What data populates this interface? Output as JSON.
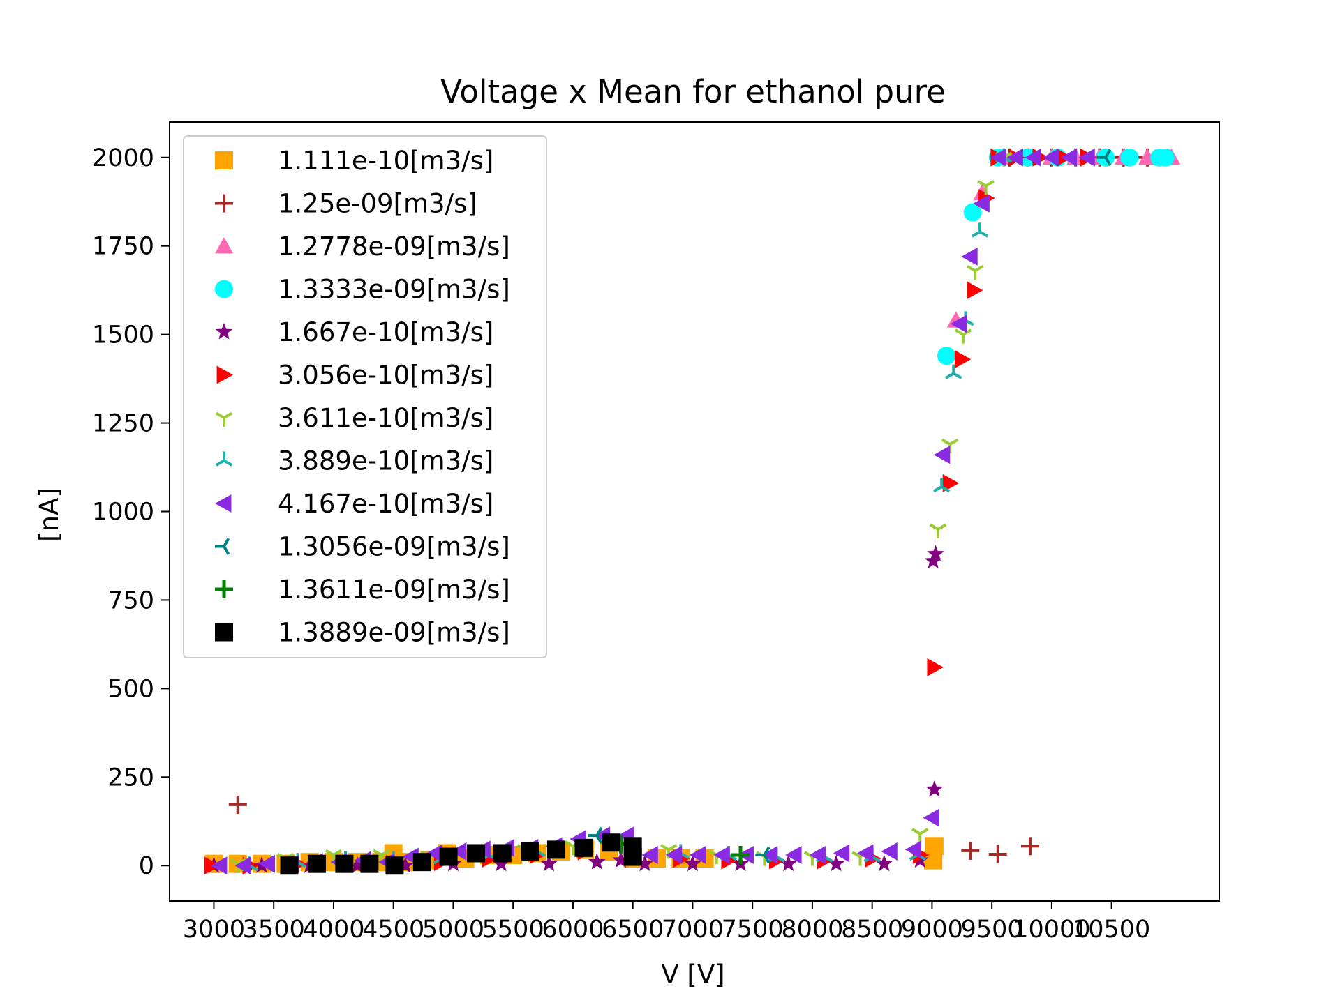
{
  "chart_data": {
    "type": "scatter",
    "title": "Voltage x Mean for ethanol pure",
    "xlabel": "V [V]",
    "ylabel": "[nA]",
    "xlim": [
      2630,
      11400
    ],
    "ylim": [
      -100,
      2100
    ],
    "xticks": [
      3000,
      3500,
      4000,
      4500,
      5000,
      5500,
      6000,
      6500,
      7000,
      7500,
      8000,
      8500,
      9000,
      9500,
      10000,
      10500
    ],
    "yticks": [
      0,
      250,
      500,
      750,
      1000,
      1250,
      1500,
      1750,
      2000
    ],
    "xtick_labels": [
      "3000",
      "3500",
      "4000",
      "4500",
      "5000",
      "5500",
      "6000",
      "6500",
      "7000",
      "7500",
      "8000",
      "8500",
      "9000",
      "9500",
      "10000",
      "10500"
    ],
    "ytick_labels": [
      "0",
      "250",
      "500",
      "750",
      "1000",
      "1250",
      "1500",
      "1750",
      "2000"
    ],
    "grid": false,
    "legend_position": "upper-left",
    "series": [
      {
        "name": "1.111e-10[m3/s]",
        "color": "#FFA500",
        "marker": "square",
        "x": [
          3000,
          3200,
          3400,
          3600,
          3800,
          4000,
          4200,
          4400,
          4500,
          4600,
          4800,
          4950,
          5100,
          5300,
          5500,
          5700,
          5900,
          6100,
          6300,
          6500,
          6700,
          6900,
          7100,
          9010,
          9020
        ],
        "y": [
          5,
          5,
          5,
          5,
          10,
          10,
          10,
          10,
          35,
          10,
          15,
          35,
          20,
          30,
          30,
          35,
          40,
          45,
          40,
          20,
          20,
          20,
          20,
          15,
          55
        ]
      },
      {
        "name": "1.25e-09[m3/s]",
        "color": "#A52A2A",
        "marker": "plus-thin",
        "x": [
          3200,
          9320,
          9550,
          9820,
          9650,
          9800,
          10000,
          10200,
          10400,
          10600,
          10800
        ],
        "y": [
          172,
          42,
          32,
          55,
          2000,
          2000,
          2000,
          2000,
          2000,
          2000,
          2000
        ]
      },
      {
        "name": "1.2778e-09[m3/s]",
        "color": "#FF69B4",
        "marker": "triangle-up",
        "x": [
          9200,
          9420,
          9600,
          9800,
          10000,
          10200,
          10400,
          10600,
          10800,
          11000
        ],
        "y": [
          1540,
          1900,
          2000,
          2000,
          2000,
          2000,
          2000,
          2000,
          2000,
          2000
        ]
      },
      {
        "name": "1.3333e-09[m3/s]",
        "color": "#00FFFF",
        "marker": "circle",
        "x": [
          9120,
          9340,
          9550,
          9800,
          10050,
          10450,
          10650,
          10900,
          10950
        ],
        "y": [
          1440,
          1845,
          2000,
          2000,
          2000,
          2000,
          2000,
          2000,
          2000
        ]
      },
      {
        "name": "1.667e-10[m3/s]",
        "color": "#800080",
        "marker": "star",
        "x": [
          3000,
          3400,
          3800,
          4200,
          4600,
          5000,
          5400,
          5800,
          6200,
          6400,
          6600,
          7000,
          7400,
          7800,
          8200,
          8600,
          8900,
          9020,
          9010,
          9030
        ],
        "y": [
          0,
          0,
          0,
          0,
          0,
          5,
          5,
          5,
          10,
          15,
          5,
          5,
          5,
          5,
          5,
          5,
          15,
          215,
          860,
          880
        ]
      },
      {
        "name": "3.056e-10[m3/s]",
        "color": "#FF0000",
        "marker": "triangle-right",
        "x": [
          2980,
          3300,
          3700,
          4100,
          4500,
          4900,
          5300,
          5700,
          6100,
          6500,
          6900,
          7300,
          7700,
          8100,
          8500,
          8900,
          9020,
          9150,
          9250,
          9350,
          9450,
          9550,
          9700,
          9900,
          10100,
          10300
        ],
        "y": [
          0,
          0,
          5,
          5,
          5,
          10,
          20,
          30,
          40,
          30,
          20,
          15,
          15,
          15,
          20,
          30,
          560,
          1080,
          1430,
          1625,
          1885,
          2000,
          2000,
          2000,
          2000,
          2000
        ]
      },
      {
        "name": "3.611e-10[m3/s]",
        "color": "#9ACD32",
        "marker": "tri-down",
        "x": [
          3200,
          3600,
          4000,
          4400,
          4800,
          5200,
          5600,
          6000,
          6400,
          6800,
          7200,
          7600,
          8000,
          8400,
          8900,
          9050,
          9150,
          9260,
          9360,
          9450,
          9600
        ],
        "y": [
          5,
          20,
          30,
          30,
          25,
          35,
          45,
          55,
          60,
          45,
          30,
          25,
          25,
          25,
          90,
          950,
          1190,
          1500,
          1680,
          1920,
          2000
        ]
      },
      {
        "name": "3.889e-10[m3/s]",
        "color": "#20B2AA",
        "marker": "tri-up",
        "x": [
          3300,
          3700,
          4100,
          4500,
          4900,
          5300,
          5700,
          6100,
          6500,
          6900,
          7300,
          7700,
          8100,
          8500,
          8880,
          9080,
          9180,
          9280,
          9400,
          9600
        ],
        "y": [
          0,
          10,
          15,
          15,
          20,
          30,
          40,
          50,
          45,
          35,
          30,
          25,
          25,
          25,
          30,
          1070,
          1390,
          1540,
          1790,
          2000
        ]
      },
      {
        "name": "4.167e-10[m3/s]",
        "color": "#8A2BE2",
        "marker": "triangle-left",
        "x": [
          3050,
          3250,
          3450,
          3650,
          3850,
          4050,
          4250,
          4450,
          4650,
          4850,
          5050,
          5250,
          5450,
          5650,
          5850,
          6050,
          6250,
          6450,
          6650,
          6850,
          7050,
          7250,
          7450,
          7650,
          7850,
          8050,
          8250,
          8450,
          8650,
          8850,
          9000,
          9090,
          9230,
          9320,
          9420,
          9560,
          9700,
          9850,
          10000,
          10150,
          10300
        ],
        "y": [
          0,
          0,
          5,
          5,
          10,
          10,
          15,
          10,
          25,
          35,
          40,
          45,
          50,
          50,
          55,
          75,
          85,
          85,
          30,
          30,
          30,
          30,
          30,
          30,
          30,
          30,
          35,
          35,
          40,
          45,
          135,
          1160,
          1530,
          1720,
          1870,
          2000,
          2000,
          2000,
          2000,
          2000,
          2000
        ]
      },
      {
        "name": "1.3056e-09[m3/s]",
        "color": "#008080",
        "marker": "tri-left",
        "x": [
          6200,
          7600,
          10450
        ],
        "y": [
          85,
          30,
          2000
        ]
      },
      {
        "name": "1.3611e-09[m3/s]",
        "color": "#008000",
        "marker": "plus",
        "x": [
          6400,
          7400
        ],
        "y": [
          60,
          30
        ]
      },
      {
        "name": "1.3889e-09[m3/s]",
        "color": "#000000",
        "marker": "square",
        "x": [
          3630,
          3860,
          4090,
          4300,
          4510,
          4740,
          4960,
          5190,
          5410,
          5640,
          5860,
          6090,
          6320,
          6500,
          6500
        ],
        "y": [
          0,
          5,
          5,
          5,
          0,
          10,
          25,
          35,
          35,
          40,
          45,
          50,
          65,
          55,
          25
        ]
      }
    ]
  }
}
